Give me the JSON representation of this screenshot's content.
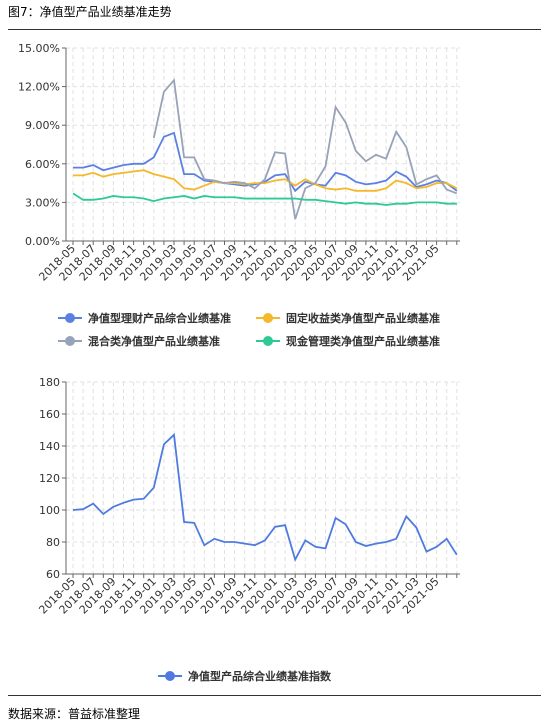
{
  "title": "图7：净值型产品业绩基准走势",
  "source": "数据来源：普益标准整理",
  "chart_data": [
    {
      "type": "line",
      "categories": [
        "2018-05",
        null,
        "2018-07",
        null,
        "2018-09",
        null,
        "2018-11",
        null,
        "2019-01",
        null,
        "2019-03",
        null,
        "2019-05",
        null,
        "2019-07",
        null,
        "2019-09",
        null,
        "2019-11",
        null,
        "2020-01",
        null,
        "2020-03",
        null,
        "2020-05",
        null,
        "2020-07",
        null,
        "2020-09",
        null,
        "2020-11",
        null,
        "2021-01",
        null,
        "2021-03",
        null,
        "2021-05",
        null,
        null
      ],
      "ylim": [
        0,
        15
      ],
      "yticks": [
        {
          "value": 0,
          "label": "0.00%"
        },
        {
          "value": 3,
          "label": "3.00%"
        },
        {
          "value": 6,
          "label": "6.00%"
        },
        {
          "value": 9,
          "label": "9.00%"
        },
        {
          "value": 12,
          "label": "12.00%"
        },
        {
          "value": 15,
          "label": "15.00%"
        }
      ],
      "grid": true,
      "series": [
        {
          "name": "净值型理财产品综合业绩基准",
          "color": "#5b80e2",
          "values": [
            5.7,
            5.7,
            5.9,
            5.5,
            5.7,
            5.9,
            6.0,
            6.0,
            6.5,
            8.1,
            8.4,
            5.2,
            5.2,
            4.7,
            4.6,
            4.5,
            4.4,
            4.3,
            4.4,
            4.6,
            5.1,
            5.2,
            3.9,
            4.6,
            4.4,
            4.3,
            5.3,
            5.1,
            4.6,
            4.4,
            4.5,
            4.7,
            5.4,
            5.0,
            4.2,
            4.4,
            4.7,
            4.5,
            3.9
          ]
        },
        {
          "name": "固定收益类净值型产品业绩基准",
          "color": "#f5b82a",
          "values": [
            5.1,
            5.1,
            5.3,
            5.0,
            5.2,
            5.3,
            5.4,
            5.5,
            5.2,
            5.0,
            4.8,
            4.1,
            4.0,
            4.3,
            4.6,
            4.5,
            4.5,
            4.4,
            4.5,
            4.5,
            4.7,
            4.8,
            4.3,
            4.8,
            4.4,
            4.1,
            4.0,
            4.1,
            3.9,
            3.9,
            3.9,
            4.1,
            4.7,
            4.5,
            4.1,
            4.2,
            4.5,
            4.5,
            4.1
          ]
        },
        {
          "name": "混合类净值型产品业绩基准",
          "color": "#97a3b8",
          "values": [
            null,
            null,
            null,
            null,
            null,
            null,
            null,
            null,
            8.0,
            11.6,
            12.5,
            6.5,
            6.5,
            4.8,
            4.7,
            4.5,
            4.6,
            4.5,
            4.1,
            4.8,
            6.9,
            6.8,
            1.7,
            4.1,
            4.5,
            5.8,
            10.4,
            9.2,
            7.0,
            6.2,
            6.7,
            6.4,
            8.5,
            7.3,
            4.4,
            4.8,
            5.1,
            4.0,
            3.7
          ]
        },
        {
          "name": "现金管理类净值型产品业绩基准",
          "color": "#2ec996",
          "values": [
            3.7,
            3.2,
            3.2,
            3.3,
            3.5,
            3.4,
            3.4,
            3.3,
            3.1,
            3.3,
            3.4,
            3.5,
            3.3,
            3.5,
            3.4,
            3.4,
            3.4,
            3.3,
            3.3,
            3.3,
            3.3,
            3.3,
            3.3,
            3.2,
            3.2,
            3.1,
            3.0,
            2.9,
            3.0,
            2.9,
            2.9,
            2.8,
            2.9,
            2.9,
            3.0,
            3.0,
            3.0,
            2.9,
            2.9
          ]
        }
      ]
    },
    {
      "type": "line",
      "categories": [
        "2018-05",
        null,
        "2018-07",
        null,
        "2018-09",
        null,
        "2018-11",
        null,
        "2019-01",
        null,
        "2019-03",
        null,
        "2019-05",
        null,
        "2019-07",
        null,
        "2019-09",
        null,
        "2019-11",
        null,
        "2020-01",
        null,
        "2020-03",
        null,
        "2020-05",
        null,
        "2020-07",
        null,
        "2020-09",
        null,
        "2020-11",
        null,
        "2021-01",
        null,
        "2021-03",
        null,
        "2021-05",
        null,
        null
      ],
      "ylim": [
        60,
        180
      ],
      "yticks": [
        60,
        80,
        100,
        120,
        140,
        160,
        180
      ],
      "grid": true,
      "series": [
        {
          "name": "净值型产品综合业绩基准指数",
          "color": "#4f7be0",
          "values": [
            100,
            100.5,
            104,
            97.5,
            102,
            104.5,
            106.5,
            107,
            114,
            141,
            147,
            92.5,
            92,
            78,
            82,
            80,
            80,
            79,
            78,
            81,
            89.5,
            90.5,
            69,
            81,
            77,
            76,
            95,
            91,
            80,
            77.5,
            79,
            80,
            82,
            96,
            89,
            74,
            77,
            82,
            72
          ]
        }
      ]
    }
  ]
}
